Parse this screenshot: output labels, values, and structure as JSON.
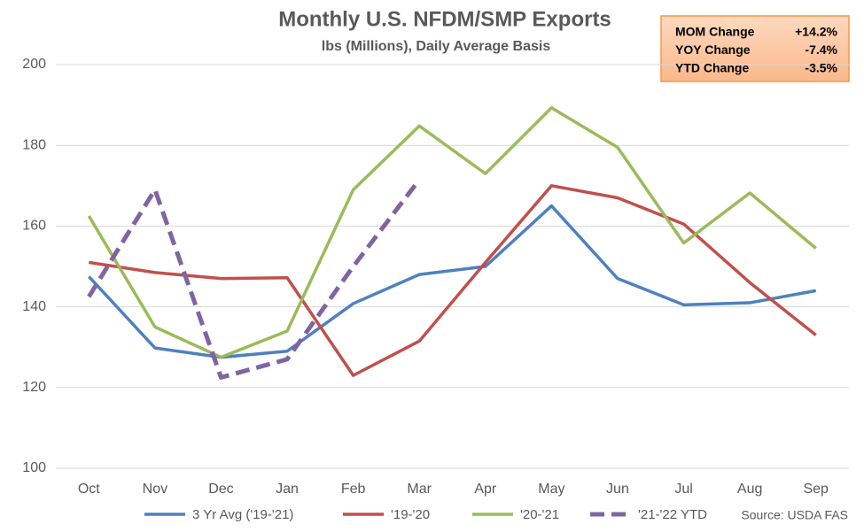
{
  "chart_data": {
    "type": "line",
    "title": "Monthly U.S. NFDM/SMP Exports",
    "subtitle": "lbs (Millions), Daily Average Basis",
    "categories": [
      "Oct",
      "Nov",
      "Dec",
      "Jan",
      "Feb",
      "Mar",
      "Apr",
      "May",
      "Jun",
      "Jul",
      "Aug",
      "Sep"
    ],
    "series": [
      {
        "name": "3 Yr Avg ('19-'21)",
        "color": "#4f81bd",
        "values": [
          147.5,
          129.8,
          127.5,
          129,
          140.8,
          148,
          150,
          165,
          147,
          140.5,
          141,
          144
        ]
      },
      {
        "name": "'19-'20",
        "color": "#c0504d",
        "values": [
          151,
          148.5,
          147,
          147.2,
          123,
          131.5,
          151,
          170,
          167,
          160.5,
          146,
          133
        ]
      },
      {
        "name": "'20-'21",
        "color": "#9bbb59",
        "values": [
          162.5,
          135,
          127.5,
          134,
          169,
          184.8,
          173,
          189.3,
          179.5,
          155.8,
          168.2,
          154.5
        ]
      },
      {
        "name": "'21-'22 YTD",
        "color": "#8064a2",
        "dashed": true,
        "values": [
          142.5,
          169,
          122.5,
          127,
          150,
          171.5,
          null,
          null,
          null,
          null,
          null,
          null
        ]
      }
    ],
    "ylim": [
      100,
      200
    ],
    "yticks": [
      100,
      120,
      140,
      160,
      180,
      200
    ],
    "grid": true,
    "legend": "bottom",
    "source": "Source: USDA FAS",
    "annotations": [
      {
        "label": "MOM Change",
        "value": "+14.2%"
      },
      {
        "label": "YOY Change",
        "value": "-7.4%"
      },
      {
        "label": "YTD Change",
        "value": "-3.5%"
      }
    ]
  }
}
